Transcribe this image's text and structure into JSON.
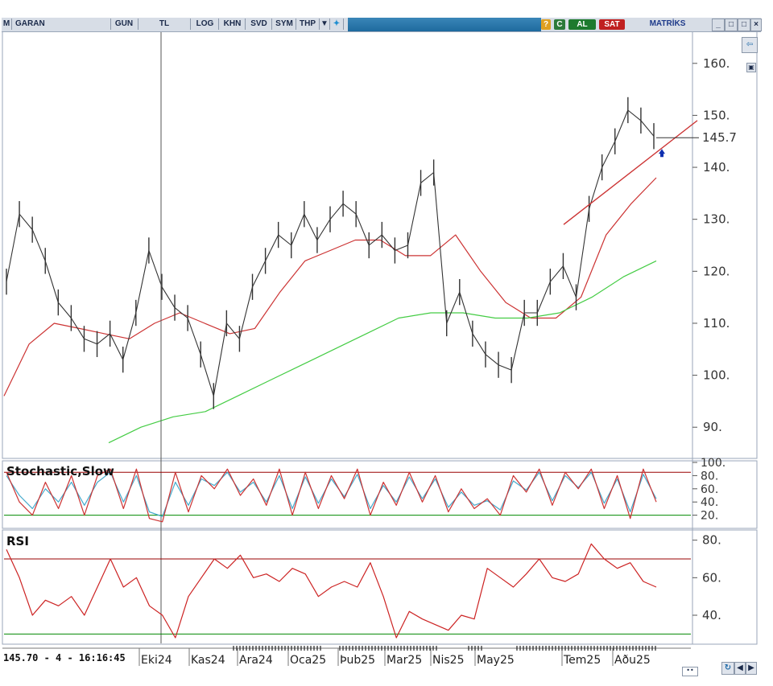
{
  "toolbar": {
    "m_label": "M",
    "symbol": "GARAN",
    "period": "GUN",
    "currency": "TL",
    "log": "LOG",
    "khn": "KHN",
    "svd": "SVD",
    "sym": "SYM",
    "thp": "THP",
    "help": "?",
    "c": "C",
    "al": "AL",
    "sat": "SAT",
    "brand": "MATRİKS"
  },
  "colors": {
    "price": "#333333",
    "ma_short": "#cc3333",
    "ma_long": "#44cc44",
    "stoch_k": "#cc3333",
    "stoch_d": "#44aacc",
    "rsi": "#cc2222",
    "band_high": "#990000",
    "band_low": "#008800",
    "trendline": "#cc3333"
  },
  "status_text": "145.70 - 4 - 16:16:45",
  "chart_data": [
    {
      "type": "line",
      "panel": "price",
      "ylim": [
        84,
        166
      ],
      "yticks": [
        "160.",
        "150.",
        "140.",
        "130.",
        "120.",
        "110.",
        "100.",
        "90."
      ],
      "last_price_label": "145.7",
      "x_labels": [
        "Eki24",
        "Kas24",
        "Ara24",
        "Oca25",
        "Þub25",
        "Mar25",
        "Nis25",
        "May25",
        "Tem25",
        "Aðu25"
      ],
      "series": [
        {
          "key": "price",
          "values": [
            118,
            131,
            128,
            122,
            114,
            111,
            107,
            106,
            108,
            103,
            112,
            124,
            117,
            113,
            111,
            104,
            96,
            110,
            107,
            117,
            122,
            127,
            125,
            131,
            126,
            130,
            133,
            131,
            125,
            127,
            124,
            125,
            137,
            139,
            110,
            116,
            108,
            104,
            102,
            101,
            112,
            112,
            118,
            121,
            115,
            132,
            140,
            145,
            151,
            149,
            146
          ]
        },
        {
          "key": "ma_short",
          "values": [
            96,
            106,
            110,
            109,
            108,
            107,
            110,
            112,
            110,
            108,
            109,
            116,
            122,
            124,
            126,
            126,
            123,
            123,
            127,
            120,
            114,
            111,
            111,
            115,
            127,
            133,
            138
          ]
        },
        {
          "key": "ma_long",
          "values": [
            87,
            90,
            92,
            93,
            96,
            99,
            102,
            105,
            108,
            111,
            112,
            112,
            111,
            111,
            112,
            115,
            119,
            122
          ]
        }
      ],
      "trendline": [
        129,
        149
      ]
    },
    {
      "type": "line",
      "panel": "Stochastic,Slow",
      "ylim": [
        0,
        100
      ],
      "yticks": [
        "100.",
        "80.",
        "60.",
        "40.",
        "20."
      ],
      "bands": [
        85,
        20
      ],
      "series": [
        {
          "key": "stoch_k",
          "values": [
            85,
            40,
            20,
            70,
            30,
            80,
            20,
            80,
            90,
            30,
            90,
            15,
            10,
            85,
            25,
            80,
            60,
            90,
            50,
            75,
            35,
            90,
            20,
            85,
            30,
            80,
            45,
            90,
            20,
            70,
            35,
            85,
            40,
            80,
            25,
            60,
            30,
            45,
            20,
            80,
            55,
            90,
            35,
            85,
            60,
            90,
            30,
            80,
            15,
            90,
            40
          ]
        },
        {
          "key": "stoch_d",
          "values": [
            80,
            50,
            30,
            60,
            40,
            70,
            35,
            70,
            85,
            40,
            80,
            25,
            18,
            70,
            35,
            75,
            65,
            85,
            55,
            70,
            40,
            80,
            30,
            78,
            38,
            75,
            48,
            82,
            30,
            65,
            40,
            78,
            45,
            75,
            32,
            55,
            35,
            42,
            28,
            72,
            58,
            85,
            42,
            80,
            62,
            85,
            38,
            75,
            25,
            82,
            45
          ]
        }
      ]
    },
    {
      "type": "line",
      "panel": "RSI",
      "ylim": [
        25,
        85
      ],
      "yticks": [
        "80.",
        "60.",
        "40."
      ],
      "bands": [
        70,
        30
      ],
      "series": [
        {
          "key": "rsi",
          "values": [
            75,
            60,
            40,
            48,
            45,
            50,
            40,
            55,
            70,
            55,
            60,
            45,
            40,
            28,
            50,
            60,
            70,
            65,
            72,
            60,
            62,
            58,
            65,
            62,
            50,
            55,
            58,
            55,
            68,
            50,
            28,
            42,
            38,
            35,
            32,
            40,
            38,
            65,
            60,
            55,
            62,
            70,
            60,
            58,
            62,
            78,
            70,
            65,
            68,
            58,
            55
          ]
        }
      ]
    }
  ]
}
